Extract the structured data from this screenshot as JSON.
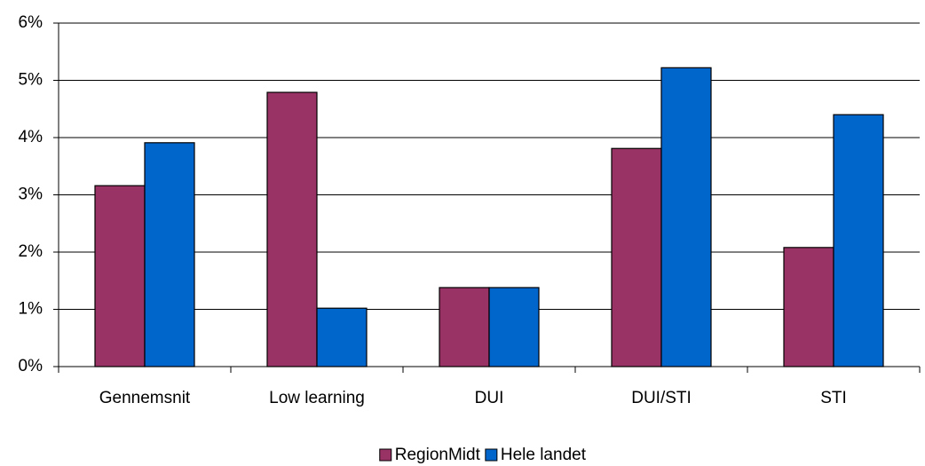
{
  "chart_data": {
    "type": "bar",
    "categories": [
      "Gennemsnit",
      "Low learning",
      "DUI",
      "DUI/STI",
      "STI"
    ],
    "series": [
      {
        "name": "RegionMidt",
        "color": "#993366",
        "values": [
          3.16,
          4.79,
          1.38,
          3.81,
          2.08
        ]
      },
      {
        "name": "Hele landet",
        "color": "#0066cc",
        "values": [
          3.91,
          1.02,
          1.38,
          5.22,
          4.4
        ]
      }
    ],
    "ylim": [
      0,
      6
    ],
    "yticks": [
      {
        "value": 0,
        "label": "0%"
      },
      {
        "value": 1,
        "label": "1%"
      },
      {
        "value": 2,
        "label": "2%"
      },
      {
        "value": 3,
        "label": "3%"
      },
      {
        "value": 4,
        "label": "4%"
      },
      {
        "value": 5,
        "label": "5%"
      },
      {
        "value": 6,
        "label": "6%"
      }
    ],
    "grid": true,
    "legend": "bottom"
  }
}
